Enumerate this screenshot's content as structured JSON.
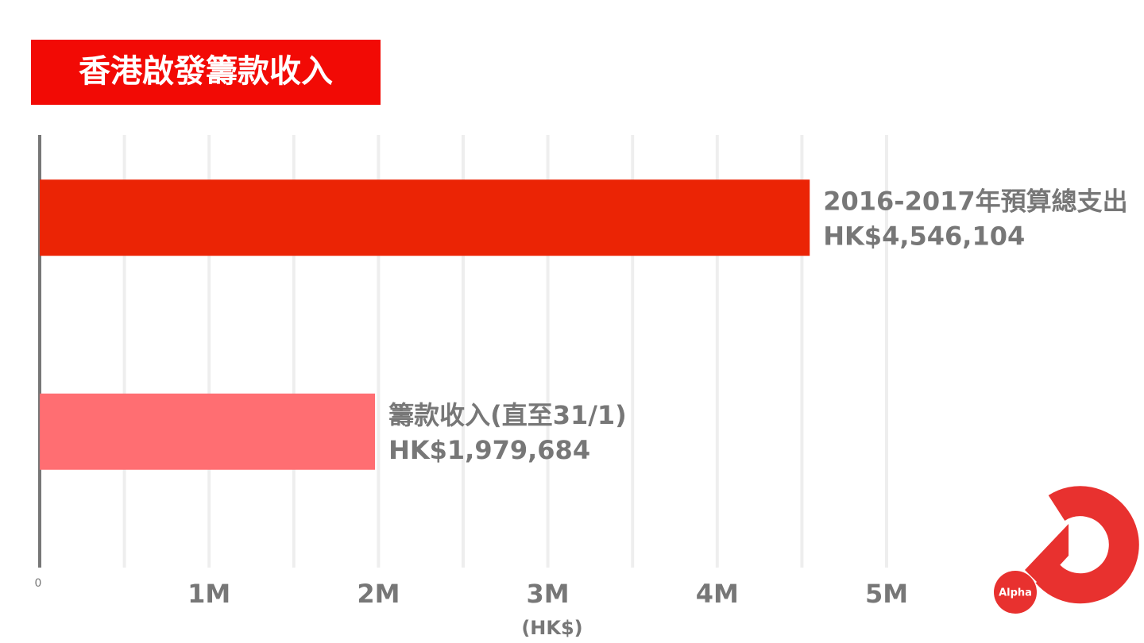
{
  "chart_data": {
    "type": "hbar",
    "title": "香港啟發籌款收入",
    "categories": [
      "2016-2017年預算總支出",
      "籌款收入(直至31/1)"
    ],
    "values": [
      4546104,
      1979684
    ],
    "value_labels": [
      "HK$4,546,104",
      "HK$1,979,684"
    ],
    "colors": [
      "#eb2405",
      "#ff6e72"
    ],
    "xlim": [
      0,
      5000000
    ],
    "xticks": [
      0,
      {
        "value": 1000000,
        "label": "1M"
      },
      {
        "value": 2000000,
        "label": "2M"
      },
      {
        "value": 3000000,
        "label": "3M"
      },
      {
        "value": 4000000,
        "label": "4M"
      },
      {
        "value": 5000000,
        "label": "5M"
      }
    ],
    "minor_xticks": [
      500000,
      1500000,
      2500000,
      3500000,
      4500000
    ],
    "xlabel": "(HK$)",
    "grid": true
  },
  "logo": {
    "text": "Alpha"
  }
}
